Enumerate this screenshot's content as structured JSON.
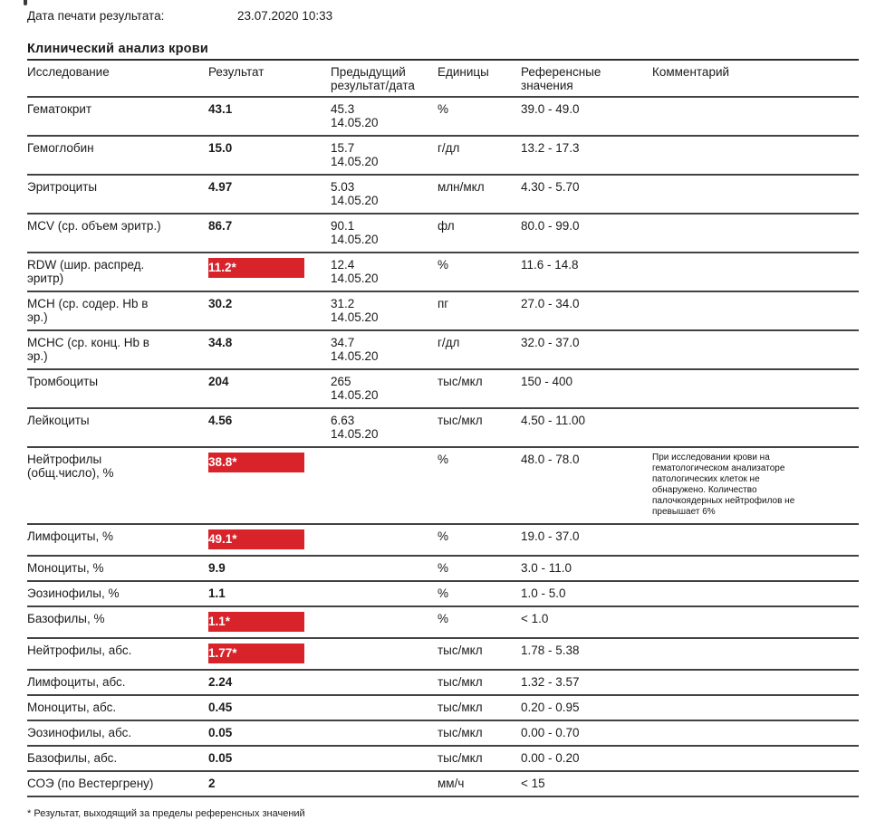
{
  "page": {
    "print_date_label": "Дата печати результата:",
    "print_date_value": "23.07.2020 10:33",
    "section_title": "Клинический анализ крови",
    "footnote": "* Результат, выходящий за пределы референсных значений"
  },
  "colors": {
    "flag_red": "#d9232b",
    "text": "#1b1b1b",
    "rule_line": "#424242"
  },
  "table": {
    "headers": [
      "Исследование",
      "Результат",
      "Предыдущий\nрезультат/дата",
      "Единицы",
      "Референсные\nзначения",
      "Комментарий"
    ],
    "rows": [
      {
        "name": "Гематокрит",
        "result": "43.1",
        "flagged": false,
        "prev": "45.3",
        "prev_date": "14.05.20",
        "units": "%",
        "ref": "39.0 - 49.0",
        "comment": ""
      },
      {
        "name": "Гемоглобин",
        "result": "15.0",
        "flagged": false,
        "prev": "15.7",
        "prev_date": "14.05.20",
        "units": "г/дл",
        "ref": "13.2 - 17.3",
        "comment": ""
      },
      {
        "name": "Эритроциты",
        "result": "4.97",
        "flagged": false,
        "prev": "5.03",
        "prev_date": "14.05.20",
        "units": "млн/мкл",
        "ref": "4.30 - 5.70",
        "comment": ""
      },
      {
        "name": "MCV (ср. объем эритр.)",
        "result": "86.7",
        "flagged": false,
        "prev": "90.1",
        "prev_date": "14.05.20",
        "units": "фл",
        "ref": "80.0 - 99.0",
        "comment": ""
      },
      {
        "name": "RDW (шир. распред.\nэритр)",
        "result": "11.2*",
        "flagged": true,
        "prev": "12.4",
        "prev_date": "14.05.20",
        "units": "%",
        "ref": "11.6 - 14.8",
        "comment": ""
      },
      {
        "name": "MCH (ср. содер. Hb в\nэр.)",
        "result": "30.2",
        "flagged": false,
        "prev": "31.2",
        "prev_date": "14.05.20",
        "units": "пг",
        "ref": "27.0 - 34.0",
        "comment": ""
      },
      {
        "name": "MCHC (ср. конц. Hb в\nэр.)",
        "result": "34.8",
        "flagged": false,
        "prev": "34.7",
        "prev_date": "14.05.20",
        "units": "г/дл",
        "ref": "32.0 - 37.0",
        "comment": ""
      },
      {
        "name": "Тромбоциты",
        "result": "204",
        "flagged": false,
        "prev": "265",
        "prev_date": "14.05.20",
        "units": "тыс/мкл",
        "ref": "150 - 400",
        "comment": ""
      },
      {
        "name": "Лейкоциты",
        "result": "4.56",
        "flagged": false,
        "prev": "6.63",
        "prev_date": "14.05.20",
        "units": "тыс/мкл",
        "ref": "4.50 - 11.00",
        "comment": ""
      },
      {
        "name": "Нейтрофилы\n(общ.число), %",
        "result": "38.8*",
        "flagged": true,
        "prev": "",
        "prev_date": "",
        "units": "%",
        "ref": "48.0 - 78.0",
        "comment": "При исследовании крови на\nгематологическом анализаторе\nпатологических клеток не\nобнаружено. Количество\nпалочкоядерных нейтрофилов не\nпревышает 6%"
      },
      {
        "name": "Лимфоциты, %",
        "result": "49.1*",
        "flagged": true,
        "prev": "",
        "prev_date": "",
        "units": "%",
        "ref": "19.0 - 37.0",
        "comment": ""
      },
      {
        "name": "Моноциты, %",
        "result": "9.9",
        "flagged": false,
        "prev": "",
        "prev_date": "",
        "units": "%",
        "ref": "3.0 - 11.0",
        "comment": ""
      },
      {
        "name": "Эозинофилы, %",
        "result": "1.1",
        "flagged": false,
        "prev": "",
        "prev_date": "",
        "units": "%",
        "ref": "1.0 - 5.0",
        "comment": ""
      },
      {
        "name": "Базофилы, %",
        "result": "1.1*",
        "flagged": true,
        "prev": "",
        "prev_date": "",
        "units": "%",
        "ref": "< 1.0",
        "comment": ""
      },
      {
        "name": "Нейтрофилы, абс.",
        "result": "1.77*",
        "flagged": true,
        "prev": "",
        "prev_date": "",
        "units": "тыс/мкл",
        "ref": "1.78 - 5.38",
        "comment": ""
      },
      {
        "name": "Лимфоциты, абс.",
        "result": "2.24",
        "flagged": false,
        "prev": "",
        "prev_date": "",
        "units": "тыс/мкл",
        "ref": "1.32 - 3.57",
        "comment": ""
      },
      {
        "name": "Моноциты, абс.",
        "result": "0.45",
        "flagged": false,
        "prev": "",
        "prev_date": "",
        "units": "тыс/мкл",
        "ref": "0.20 - 0.95",
        "comment": ""
      },
      {
        "name": "Эозинофилы, абс.",
        "result": "0.05",
        "flagged": false,
        "prev": "",
        "prev_date": "",
        "units": "тыс/мкл",
        "ref": "0.00 - 0.70",
        "comment": ""
      },
      {
        "name": "Базофилы, абс.",
        "result": "0.05",
        "flagged": false,
        "prev": "",
        "prev_date": "",
        "units": "тыс/мкл",
        "ref": "0.00 - 0.20",
        "comment": ""
      },
      {
        "name": "СОЭ (по Вестергрену)",
        "result": "2",
        "flagged": false,
        "prev": "",
        "prev_date": "",
        "units": "мм/ч",
        "ref": "< 15",
        "comment": ""
      }
    ]
  }
}
